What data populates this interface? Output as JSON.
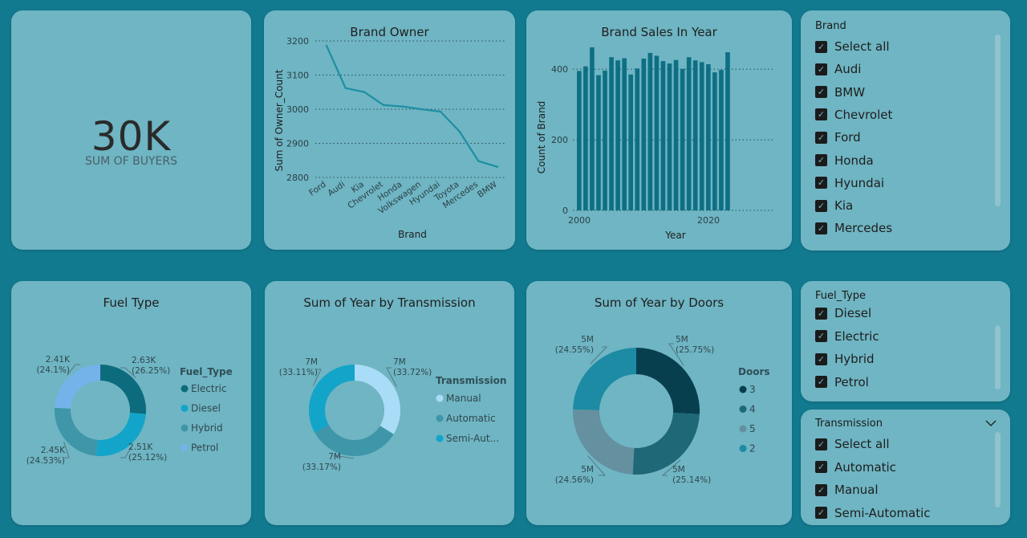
{
  "kpi": {
    "value": "30K",
    "label": "SUM OF BUYERS"
  },
  "brand_owner": {
    "title": "Brand Owner",
    "ylabel": "Sum of Owner_Count",
    "xlabel": "Brand",
    "yticks": [
      "3200",
      "3100",
      "3000",
      "2900",
      "2800"
    ],
    "categories": [
      "Ford",
      "Audi",
      "Kia",
      "Chevrolet",
      "Honda",
      "Volkswagen",
      "Hyundai",
      "Toyota",
      "Mercedes",
      "BMW"
    ]
  },
  "brand_sales": {
    "title": "Brand Sales In Year",
    "ylabel": "Count of Brand",
    "xlabel": "Year",
    "yticks": [
      "400",
      "200",
      "0"
    ],
    "xticks": [
      "2000",
      "2020"
    ]
  },
  "fuel_type": {
    "title": "Fuel Type",
    "legend_title": "Fuel_Type",
    "labels": [
      {
        "value": "2.63K",
        "pct": "(26.25%)"
      },
      {
        "value": "2.51K",
        "pct": "(25.12%)"
      },
      {
        "value": "2.45K",
        "pct": "(24.53%)"
      },
      {
        "value": "2.41K",
        "pct": "(24.1%)"
      }
    ]
  },
  "transmission_chart": {
    "title": "Sum of Year by Transmission",
    "legend_title": "Transmission",
    "labels": [
      {
        "value": "7M",
        "pct": "(33.72%)"
      },
      {
        "value": "7M",
        "pct": "(33.17%)"
      },
      {
        "value": "7M",
        "pct": "(33.11%)"
      }
    ]
  },
  "doors_chart": {
    "title": "Sum of Year by Doors",
    "legend_title": "Doors",
    "labels": [
      {
        "value": "5M",
        "pct": "(25.75%)"
      },
      {
        "value": "5M",
        "pct": "(25.14%)"
      },
      {
        "value": "5M",
        "pct": "(24.56%)"
      },
      {
        "value": "5M",
        "pct": "(24.55%)"
      }
    ]
  },
  "brand_slicer": {
    "title": "Brand",
    "items": [
      "Select all",
      "Audi",
      "BMW",
      "Chevrolet",
      "Ford",
      "Honda",
      "Hyundai",
      "Kia",
      "Mercedes"
    ]
  },
  "fuel_slicer": {
    "title": "Fuel_Type",
    "items": [
      "Diesel",
      "Electric",
      "Hybrid",
      "Petrol"
    ]
  },
  "transmission_slicer": {
    "title": "Transmission",
    "items": [
      "Select all",
      "Automatic",
      "Manual",
      "Semi-Automatic"
    ]
  },
  "chart_data": [
    {
      "type": "line",
      "title": "Brand Owner",
      "xlabel": "Brand",
      "ylabel": "Sum of Owner_Count",
      "categories": [
        "Ford",
        "Audi",
        "Kia",
        "Chevrolet",
        "Honda",
        "Volkswagen",
        "Hyundai",
        "Toyota",
        "Mercedes",
        "BMW"
      ],
      "values": [
        3186,
        3062,
        3050,
        3012,
        3008,
        3000,
        2993,
        2935,
        2848,
        2831
      ],
      "ylim": [
        2800,
        3200
      ],
      "grid": true,
      "color": "#1f8ea3"
    },
    {
      "type": "bar",
      "title": "Brand Sales In Year",
      "xlabel": "Year",
      "ylabel": "Count of Brand",
      "x": [
        2000,
        2001,
        2002,
        2003,
        2004,
        2005,
        2006,
        2007,
        2008,
        2009,
        2010,
        2011,
        2012,
        2013,
        2014,
        2015,
        2016,
        2017,
        2018,
        2019,
        2020,
        2021,
        2022,
        2023
      ],
      "values": [
        395,
        408,
        462,
        383,
        396,
        434,
        425,
        431,
        385,
        402,
        430,
        446,
        438,
        423,
        416,
        426,
        401,
        434,
        425,
        420,
        414,
        391,
        398,
        448
      ],
      "ylim": [
        0,
        480
      ],
      "grid": true,
      "color": "#0e6f83"
    },
    {
      "type": "pie",
      "title": "Fuel Type",
      "series": [
        {
          "name": "Fuel_Type",
          "values": [
            2.63,
            2.51,
            2.45,
            2.41
          ]
        }
      ],
      "categories": [
        "Electric",
        "Diesel",
        "Hybrid",
        "Petrol"
      ],
      "colors": [
        "#0c6b7c",
        "#13a4c9",
        "#3f96a8",
        "#74b3ea"
      ],
      "legend": "right"
    },
    {
      "type": "pie",
      "title": "Sum of Year by Transmission",
      "series": [
        {
          "name": "Transmission",
          "values": [
            33.72,
            33.17,
            33.11
          ]
        }
      ],
      "categories": [
        "Manual",
        "Automatic",
        "Semi-Aut..."
      ],
      "colors": [
        "#a9dcf7",
        "#3f96a8",
        "#13a4c9"
      ],
      "legend": "right"
    },
    {
      "type": "pie",
      "title": "Sum of Year by Doors",
      "series": [
        {
          "name": "Doors",
          "values": [
            25.75,
            25.14,
            24.56,
            24.55
          ]
        }
      ],
      "categories": [
        "3",
        "4",
        "5",
        "2"
      ],
      "colors": [
        "#073f4e",
        "#1e6877",
        "#65909f",
        "#1c8ba3"
      ],
      "legend": "right"
    }
  ]
}
